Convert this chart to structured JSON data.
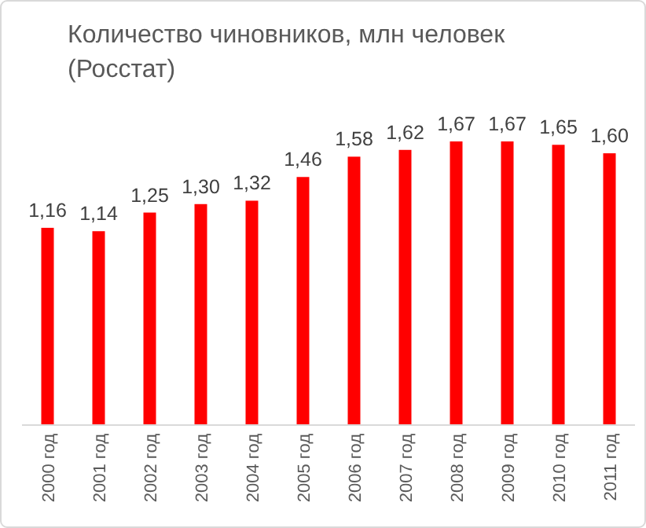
{
  "chart_data": {
    "type": "bar",
    "title": "Количество чиновников, млн человек (Росстат)",
    "categories": [
      "2000 год",
      "2001 год",
      "2002 год",
      "2003 год",
      "2004 год",
      "2005 год",
      "2006 год",
      "2007 год",
      "2008 год",
      "2009 год",
      "2010 год",
      "2011 год"
    ],
    "values": [
      1.16,
      1.14,
      1.25,
      1.3,
      1.32,
      1.46,
      1.58,
      1.62,
      1.67,
      1.67,
      1.65,
      1.6
    ],
    "value_labels": [
      "1,16",
      "1,14",
      "1,25",
      "1,30",
      "1,32",
      "1,46",
      "1,58",
      "1,62",
      "1,67",
      "1,67",
      "1,65",
      "1,60"
    ],
    "color": "#ff0000"
  }
}
